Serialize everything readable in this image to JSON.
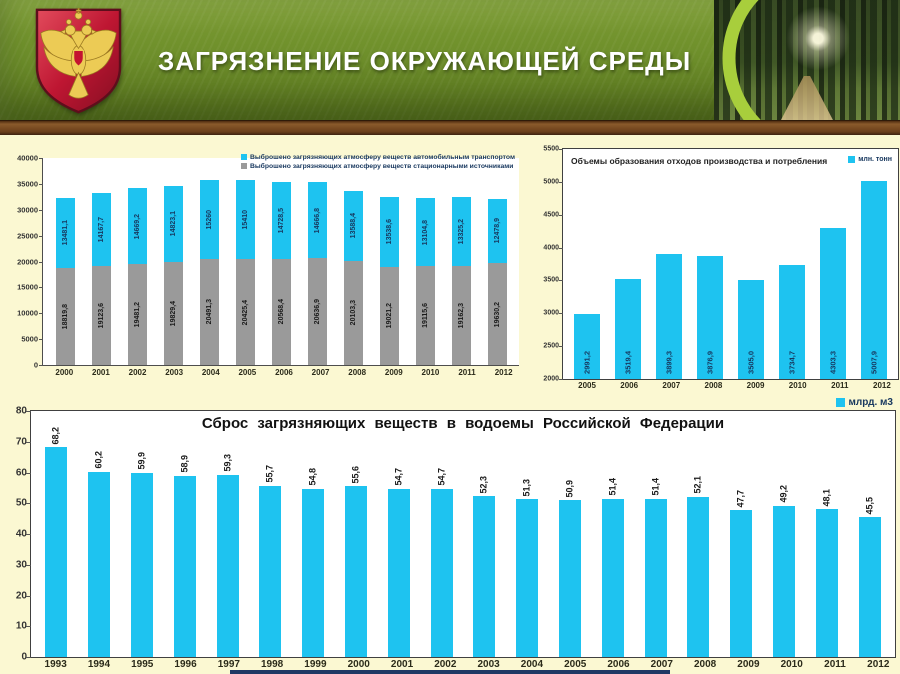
{
  "header": {
    "title": "ЗАГРЯЗНЕНИЕ ОКРУЖАЮЩЕЙ СРЕДЫ"
  },
  "colors": {
    "cyan": "#1EC3F0",
    "gray": "#9A9A9A",
    "label_navy": "#17375E",
    "label_dark": "#1A1A1A",
    "page_bg": "#FBF8D2",
    "header_green": "#6E8F2B",
    "wood_brown": "#7A4C22",
    "navy_strip": "#203864",
    "shield_red": "#BE1632",
    "eagle_gold": "#ECCB55"
  },
  "chart_data": [
    {
      "id": "air",
      "type": "bar",
      "stacked": true,
      "categories": [
        "2000",
        "2001",
        "2002",
        "2003",
        "2004",
        "2005",
        "2006",
        "2007",
        "2008",
        "2009",
        "2010",
        "2011",
        "2012"
      ],
      "series": [
        {
          "name": "Выброшено загрязняющих атмосферу веществ стационарными источниками",
          "color_key": "gray",
          "label_color_key": "label_dark",
          "values": [
            18819.8,
            19123.6,
            19481.2,
            19829.4,
            20491.3,
            20425.4,
            20568.4,
            20636.9,
            20103.3,
            19021.2,
            19115.6,
            19162.3,
            19630.2
          ],
          "labels": [
            "18819,8",
            "19123,6",
            "19481,2",
            "19829,4",
            "20491,3",
            "20425,4",
            "20568,4",
            "20636,9",
            "20103,3",
            "19021,2",
            "19115,6",
            "19162,3",
            "19630,2"
          ]
        },
        {
          "name": "Выброшено загрязняющих атмосферу веществ автомобильным транспортом",
          "color_key": "cyan",
          "label_color_key": "label_navy",
          "values": [
            13481.1,
            14167.7,
            14669.2,
            14823.1,
            15260,
            15410,
            14728.5,
            14666.8,
            13588.4,
            13538.6,
            13104.8,
            13325.2,
            12478.9
          ],
          "labels": [
            "13481,1",
            "14167,7",
            "14669,2",
            "14823,1",
            "15260",
            "15410",
            "14728,5",
            "14666,8",
            "13588,4",
            "13538,6",
            "13104,8",
            "13325,2",
            "12478,9"
          ]
        }
      ],
      "ylim": [
        0,
        40000
      ],
      "ytick": 5000,
      "grid": false,
      "legend_position": "top-right-inside"
    },
    {
      "id": "waste",
      "type": "bar",
      "title": "Объемы образования отходов производства и потребления",
      "legend": "млн. тонн",
      "categories": [
        "2005",
        "2006",
        "2007",
        "2008",
        "2009",
        "2010",
        "2011",
        "2012"
      ],
      "values": [
        2991.2,
        3519.4,
        3899.3,
        3876.9,
        3505.0,
        3734.7,
        4303.3,
        5007.9
      ],
      "labels": [
        "2991,2",
        "3519,4",
        "3899,3",
        "3876,9",
        "3505,0",
        "3734,7",
        "4303,3",
        "5007,9"
      ],
      "ylim": [
        2000,
        5500
      ],
      "ytick": 500,
      "grid": false,
      "legend_position": "top-right-inside"
    },
    {
      "id": "water",
      "type": "bar",
      "title": "Сброс загрязняющих веществ в водоемы Российской Федерации",
      "legend": "млрд. м3",
      "categories": [
        "1993",
        "1994",
        "1995",
        "1996",
        "1997",
        "1998",
        "1999",
        "2000",
        "2001",
        "2002",
        "2003",
        "2004",
        "2005",
        "2006",
        "2007",
        "2008",
        "2009",
        "2010",
        "2011",
        "2012"
      ],
      "values": [
        68.2,
        60.2,
        59.9,
        58.9,
        59.3,
        55.7,
        54.8,
        55.6,
        54.7,
        54.7,
        52.3,
        51.3,
        50.9,
        51.4,
        51.4,
        52.1,
        47.7,
        49.2,
        48.1,
        45.5
      ],
      "labels": [
        "68,2",
        "60,2",
        "59,9",
        "58,9",
        "59,3",
        "55,7",
        "54,8",
        "55,6",
        "54,7",
        "54,7",
        "52,3",
        "51,3",
        "50,9",
        "51,4",
        "51,4",
        "52,1",
        "47,7",
        "49,2",
        "48,1",
        "45,5"
      ],
      "ylim": [
        0,
        80
      ],
      "ytick": 10,
      "grid": false,
      "legend_position": "top-right-outside"
    }
  ]
}
